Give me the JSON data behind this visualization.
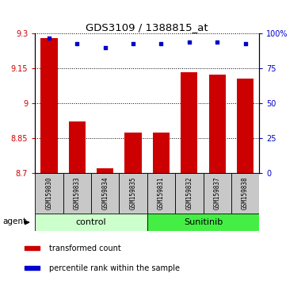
{
  "title": "GDS3109 / 1388815_at",
  "samples": [
    "GSM159830",
    "GSM159833",
    "GSM159834",
    "GSM159835",
    "GSM159831",
    "GSM159832",
    "GSM159837",
    "GSM159838"
  ],
  "red_values": [
    9.28,
    8.92,
    8.72,
    8.875,
    8.875,
    9.135,
    9.125,
    9.105
  ],
  "blue_values": [
    97,
    93,
    90,
    93,
    93,
    94,
    94,
    93
  ],
  "ylim_left": [
    8.7,
    9.3
  ],
  "ylim_right": [
    0,
    100
  ],
  "yticks_left": [
    8.7,
    8.85,
    9.0,
    9.15,
    9.3
  ],
  "yticks_left_labels": [
    "8.7",
    "8.85",
    "9",
    "9.15",
    "9.3"
  ],
  "yticks_right": [
    0,
    25,
    50,
    75,
    100
  ],
  "yticks_right_labels": [
    "0",
    "25",
    "50",
    "75",
    "100%"
  ],
  "red_color": "#CC0000",
  "blue_color": "#0000CC",
  "bar_width": 0.6,
  "ctrl_color": "#CCFFCC",
  "sun_color": "#44EE44",
  "label_bg": "#C8C8C8",
  "agent_label": "agent",
  "legend_red": "transformed count",
  "legend_blue": "percentile rank within the sample",
  "ctrl_label": "control",
  "sun_label": "Sunitinib"
}
